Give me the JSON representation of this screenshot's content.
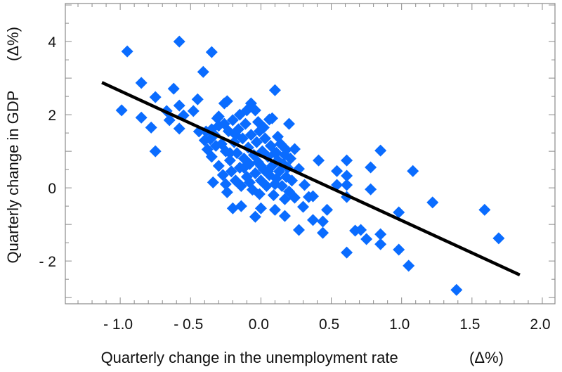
{
  "chart_data": {
    "type": "scatter",
    "title": "",
    "xlabel": "Quarterly change in the unemployment rate",
    "xlabel_unit": "(Δ%)",
    "ylabel": "Quarterly change in GDP",
    "ylabel_unit": "(Δ%)",
    "xlim": [
      -1.39,
      2.09
    ],
    "ylim": [
      -3.17,
      5.04
    ],
    "grid": false,
    "legend": "none",
    "marker": "diamond",
    "marker_color": "#0a6cff",
    "line_color": "#000000",
    "x_ticks": [
      -1.0,
      -0.5,
      0.0,
      0.5,
      1.0,
      1.5,
      2.0
    ],
    "x_tick_labels": [
      "- 1.0",
      "- 0.5",
      "0.0",
      "0.5",
      "1.0",
      "1.5",
      "2.0"
    ],
    "y_ticks": [
      4,
      2,
      0,
      -2
    ],
    "y_tick_labels": [
      "4",
      "2",
      "0",
      "- 2"
    ],
    "fit_line": {
      "x": [
        -1.13,
        1.84
      ],
      "y": [
        2.88,
        -2.38
      ]
    },
    "points": [
      [
        -0.95,
        3.73
      ],
      [
        -0.58,
        4.0
      ],
      [
        -0.35,
        3.71
      ],
      [
        -0.41,
        3.17
      ],
      [
        -0.85,
        2.87
      ],
      [
        -0.62,
        2.71
      ],
      [
        0.1,
        2.67
      ],
      [
        -0.99,
        2.12
      ],
      [
        -0.85,
        1.92
      ],
      [
        -0.75,
        2.48
      ],
      [
        -0.78,
        1.65
      ],
      [
        -0.75,
        1.0
      ],
      [
        -0.58,
        2.25
      ],
      [
        -0.45,
        2.42
      ],
      [
        -0.67,
        2.1
      ],
      [
        -0.65,
        1.85
      ],
      [
        -0.58,
        1.62
      ],
      [
        -0.55,
        1.98
      ],
      [
        -0.48,
        2.1
      ],
      [
        -0.26,
        2.31
      ],
      [
        -0.24,
        2.37
      ],
      [
        -0.07,
        2.31
      ],
      [
        -0.1,
        2.12
      ],
      [
        -0.04,
        2.12
      ],
      [
        0.06,
        1.87
      ],
      [
        0.08,
        1.9
      ],
      [
        0.2,
        1.75
      ],
      [
        -0.31,
        1.9
      ],
      [
        -0.34,
        0.15
      ],
      [
        -0.24,
        -0.12
      ],
      [
        -0.2,
        -0.56
      ],
      [
        -0.14,
        -0.5
      ],
      [
        -0.04,
        -0.79
      ],
      [
        0.0,
        -0.56
      ],
      [
        -0.01,
        -0.17
      ],
      [
        0.11,
        0.96
      ],
      [
        0.18,
        1.04
      ],
      [
        -0.39,
        1.54
      ],
      [
        -0.44,
        1.54
      ],
      [
        -0.32,
        1.15
      ],
      [
        -0.36,
        1.33
      ],
      [
        0.67,
        -1.17
      ],
      [
        0.71,
        -1.15
      ],
      [
        0.75,
        -1.4
      ],
      [
        0.85,
        -1.27
      ],
      [
        0.85,
        -1.54
      ],
      [
        0.98,
        -1.69
      ],
      [
        1.05,
        -2.13
      ],
      [
        0.61,
        -1.77
      ],
      [
        1.39,
        -2.79
      ],
      [
        1.69,
        -1.38
      ],
      [
        1.59,
        -0.6
      ],
      [
        1.22,
        -0.4
      ],
      [
        1.08,
        0.46
      ],
      [
        0.98,
        -0.67
      ],
      [
        0.85,
        1.02
      ],
      [
        0.78,
        0.56
      ],
      [
        0.78,
        -0.04
      ],
      [
        0.61,
        0.75
      ],
      [
        0.54,
        0.46
      ],
      [
        0.61,
        0.33
      ],
      [
        0.54,
        0.08
      ],
      [
        0.61,
        0.08
      ],
      [
        0.61,
        -0.25
      ],
      [
        0.41,
        0.75
      ],
      [
        0.47,
        -0.6
      ],
      [
        0.44,
        -0.92
      ],
      [
        0.44,
        -1.23
      ],
      [
        0.37,
        -0.88
      ],
      [
        0.27,
        -1.15
      ],
      [
        0.3,
        -0.52
      ],
      [
        0.37,
        -0.23
      ],
      [
        0.34,
        -0.25
      ],
      [
        0.1,
        -0.6
      ],
      [
        0.17,
        -0.77
      ],
      [
        0.24,
        -0.27
      ],
      [
        0.17,
        -0.31
      ],
      [
        0.31,
        0.08
      ],
      [
        0.27,
        0.52
      ],
      [
        0.24,
        1.06
      ],
      [
        -0.4,
        1.3
      ],
      [
        -0.38,
        1.05
      ],
      [
        -0.35,
        0.85
      ],
      [
        -0.33,
        1.45
      ],
      [
        -0.3,
        1.7
      ],
      [
        -0.3,
        0.6
      ],
      [
        -0.28,
        1.2
      ],
      [
        -0.27,
        0.35
      ],
      [
        -0.25,
        1.0
      ],
      [
        -0.25,
        0.1
      ],
      [
        -0.23,
        1.55
      ],
      [
        -0.22,
        0.75
      ],
      [
        -0.21,
        0.45
      ],
      [
        -0.2,
        1.85
      ],
      [
        -0.19,
        1.25
      ],
      [
        -0.18,
        0.2
      ],
      [
        -0.17,
        0.95
      ],
      [
        -0.16,
        1.6
      ],
      [
        -0.15,
        0.55
      ],
      [
        -0.14,
        0.05
      ],
      [
        -0.13,
        1.35
      ],
      [
        -0.12,
        0.8
      ],
      [
        -0.11,
        1.75
      ],
      [
        -0.1,
        0.3
      ],
      [
        -0.09,
        1.1
      ],
      [
        -0.08,
        0.65
      ],
      [
        -0.07,
        1.45
      ],
      [
        -0.06,
        -0.05
      ],
      [
        -0.05,
        0.9
      ],
      [
        -0.04,
        0.4
      ],
      [
        -0.03,
        1.25
      ],
      [
        -0.02,
        0.7
      ],
      [
        -0.01,
        1.55
      ],
      [
        0.0,
        0.2
      ],
      [
        0.01,
        1.0
      ],
      [
        0.02,
        0.5
      ],
      [
        0.03,
        1.35
      ],
      [
        0.04,
        0.05
      ],
      [
        0.05,
        0.85
      ],
      [
        0.06,
        0.35
      ],
      [
        0.07,
        1.15
      ],
      [
        0.08,
        0.6
      ],
      [
        0.09,
        -0.2
      ],
      [
        0.1,
        0.95
      ],
      [
        0.11,
        0.25
      ],
      [
        0.12,
        0.75
      ],
      [
        0.13,
        0.45
      ],
      [
        0.14,
        1.2
      ],
      [
        0.15,
        0.05
      ],
      [
        0.16,
        0.65
      ],
      [
        0.17,
        0.9
      ],
      [
        0.18,
        0.3
      ],
      [
        0.19,
        0.55
      ],
      [
        0.2,
        -0.1
      ],
      [
        0.21,
        0.8
      ],
      [
        0.22,
        0.2
      ],
      [
        -0.02,
        1.8
      ],
      [
        0.02,
        1.65
      ],
      [
        -0.3,
        1.95
      ],
      [
        -0.26,
        1.75
      ],
      [
        -0.18,
        1.45
      ],
      [
        -0.22,
        0.95
      ],
      [
        -0.12,
        0.55
      ],
      [
        0.0,
        0.6
      ],
      [
        0.05,
        0.45
      ],
      [
        -0.08,
        0.15
      ],
      [
        0.1,
        0.1
      ],
      [
        -0.35,
        1.6
      ],
      [
        -0.15,
        2.0
      ],
      [
        0.12,
        1.4
      ]
    ]
  }
}
